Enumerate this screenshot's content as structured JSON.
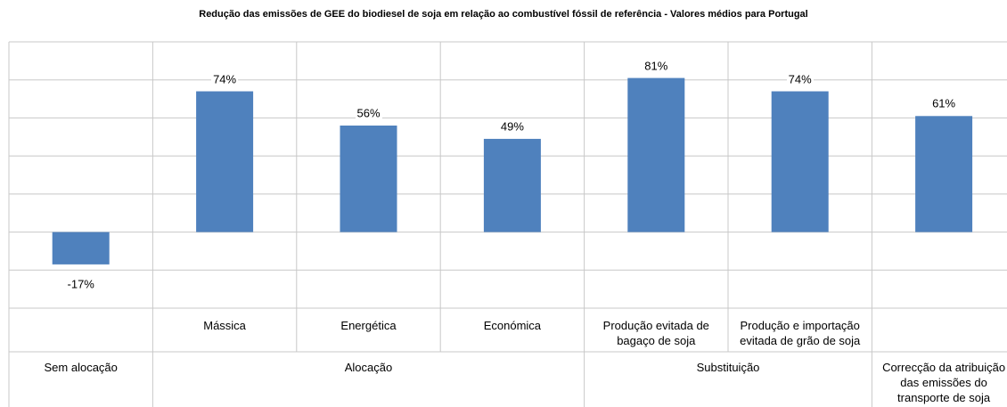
{
  "chart_data": {
    "type": "bar",
    "title": "Redução das emissões de GEE do biodiesel de soja em relação ao combustível fóssil de referência - Valores médios para Portugal",
    "categories": [
      null,
      "Mássica",
      "Energética",
      "Económica",
      "Produção evitada de bagaço de soja",
      "Produção e importação evitada de grão de soja",
      null
    ],
    "groups": [
      {
        "label": "Sem alocação",
        "span": 1
      },
      {
        "label": "Alocação",
        "span": 3
      },
      {
        "label": "Substituição",
        "span": 2
      },
      {
        "label": "Correcção da atribuição das emissões do transporte de soja",
        "span": 1
      }
    ],
    "values": [
      -17,
      74,
      56,
      49,
      81,
      74,
      61
    ],
    "value_labels": [
      "-17%",
      "74%",
      "56%",
      "49%",
      "81%",
      "74%",
      "61%"
    ],
    "color": "#4f81bd",
    "ylim": [
      -40,
      100
    ],
    "yticks": [
      -40,
      -20,
      0,
      20,
      40,
      60,
      80,
      100
    ],
    "grid": true
  }
}
